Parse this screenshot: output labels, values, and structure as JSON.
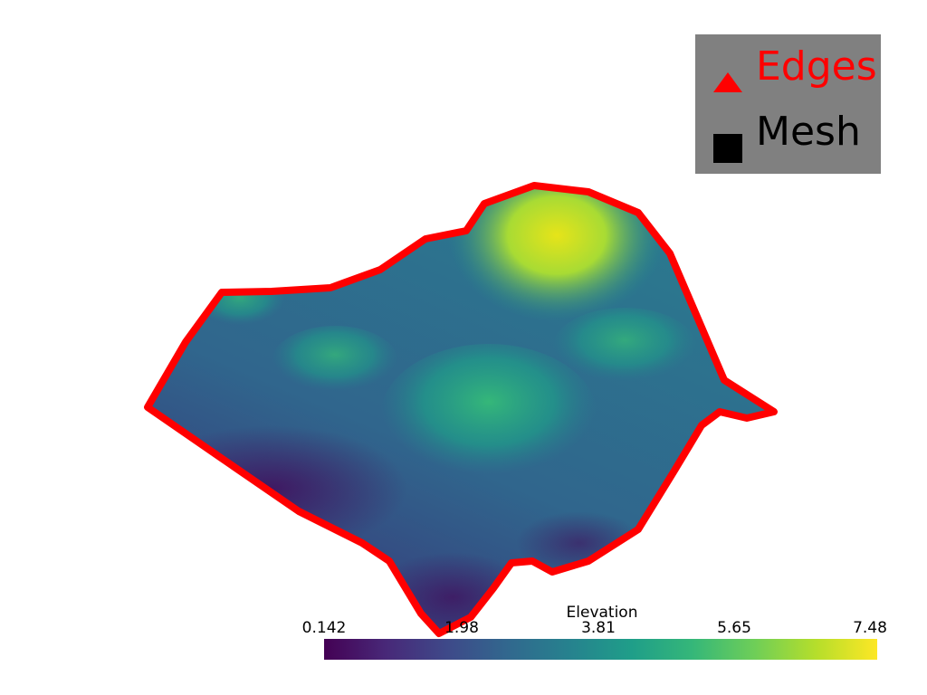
{
  "legend": {
    "background": "#808080",
    "entries": [
      {
        "label": "Edges",
        "color": "#ff0000",
        "icon": "triangle-icon"
      },
      {
        "label": "Mesh",
        "color": "#000000",
        "icon": "square-icon"
      }
    ]
  },
  "surface": {
    "edge_color": "#ff0000",
    "colormap": [
      "#440154",
      "#3b528b",
      "#21918c",
      "#5ec962",
      "#fde725"
    ]
  },
  "colorbar": {
    "title": "Elevation",
    "ticks": [
      "0.142",
      "1.98",
      "3.81",
      "5.65",
      "7.48"
    ],
    "range": [
      0.142,
      7.48
    ],
    "colors": [
      "#440154",
      "#482878",
      "#3e4989",
      "#31688e",
      "#26828e",
      "#1f9e89",
      "#35b779",
      "#6ece58",
      "#b5de2b",
      "#fde725"
    ]
  }
}
